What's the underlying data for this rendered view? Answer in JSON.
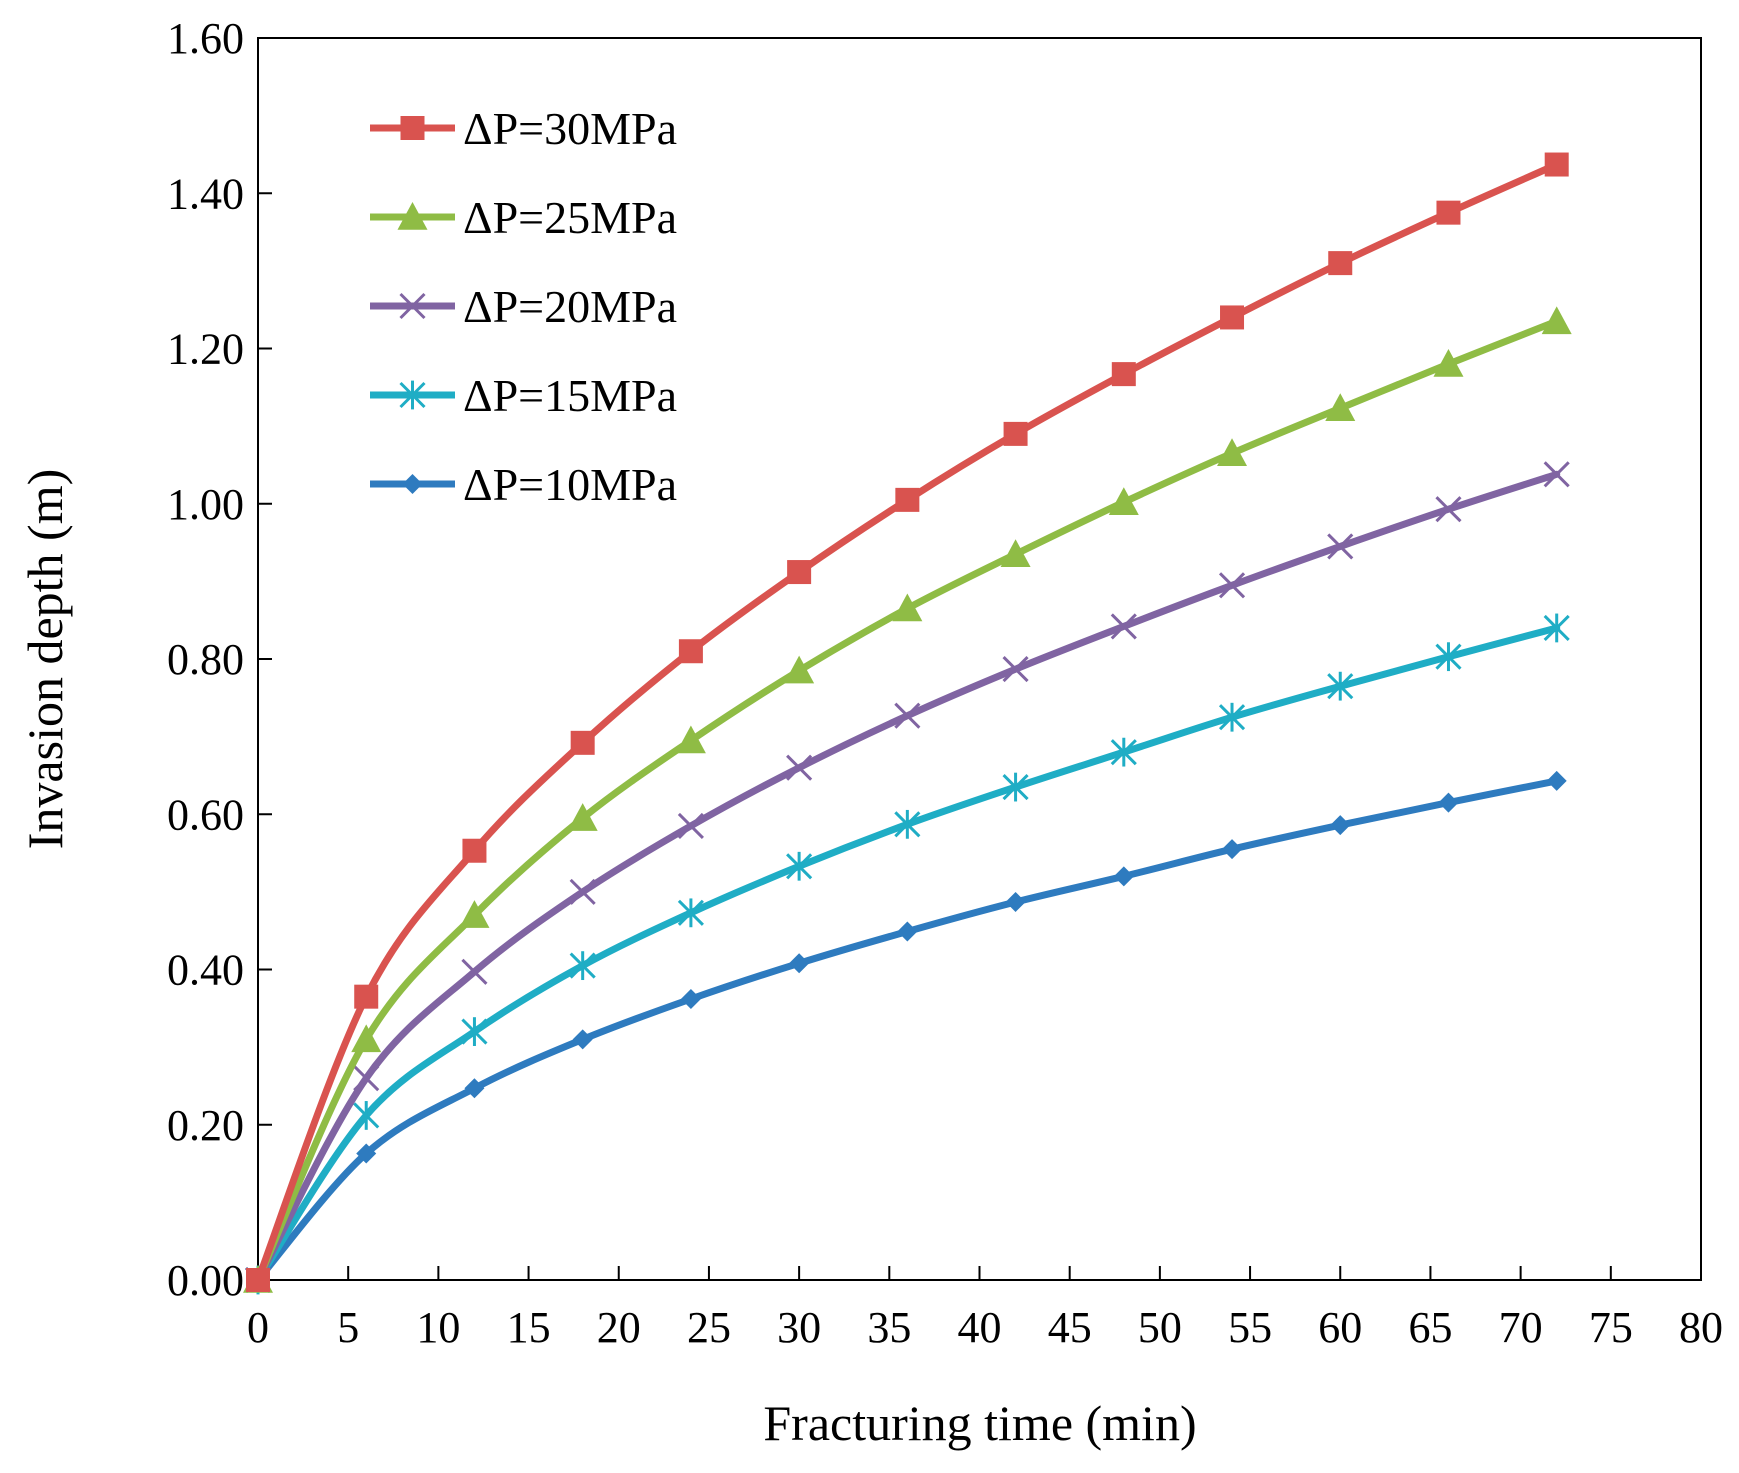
{
  "chart_data": {
    "type": "line",
    "title": "",
    "xlabel": "Fracturing time (min)",
    "ylabel": "Invasion depth (m)",
    "xlim": [
      0,
      80
    ],
    "ylim": [
      0,
      1.6
    ],
    "x_ticks": [
      0,
      5,
      10,
      15,
      20,
      25,
      30,
      35,
      40,
      45,
      50,
      55,
      60,
      65,
      70,
      75,
      80
    ],
    "x_tick_labels": [
      "0",
      "5",
      "10",
      "15",
      "20",
      "25",
      "30",
      "35",
      "40",
      "45",
      "50",
      "55",
      "60",
      "65",
      "70",
      "75",
      "80"
    ],
    "y_ticks": [
      0,
      0.2,
      0.4,
      0.6,
      0.8,
      1.0,
      1.2,
      1.4,
      1.6
    ],
    "y_tick_labels": [
      "0.00",
      "0.20",
      "0.40",
      "0.60",
      "0.80",
      "1.00",
      "1.20",
      "1.40",
      "1.60"
    ],
    "grid": false,
    "legend_position": "top-left",
    "x": [
      0,
      6,
      12,
      18,
      24,
      30,
      36,
      42,
      48,
      54,
      60,
      66,
      72
    ],
    "series": [
      {
        "name": "ΔP=30MPa",
        "color": "#d9534f",
        "marker": "square",
        "values": [
          0,
          0.365,
          0.553,
          0.692,
          0.81,
          0.912,
          1.005,
          1.09,
          1.167,
          1.24,
          1.31,
          1.375,
          1.437
        ]
      },
      {
        "name": "ΔP=25MPa",
        "color": "#8fbc45",
        "marker": "triangle",
        "values": [
          0,
          0.31,
          0.47,
          0.595,
          0.695,
          0.785,
          0.865,
          0.935,
          1.002,
          1.065,
          1.123,
          1.18,
          1.235
        ]
      },
      {
        "name": "ΔP=20MPa",
        "color": "#8064a2",
        "marker": "x",
        "values": [
          0,
          0.26,
          0.397,
          0.5,
          0.585,
          0.66,
          0.727,
          0.787,
          0.842,
          0.895,
          0.945,
          0.993,
          1.038
        ]
      },
      {
        "name": "ΔP=15MPa",
        "color": "#1fadc5",
        "marker": "asterisk",
        "values": [
          0,
          0.212,
          0.32,
          0.405,
          0.473,
          0.533,
          0.587,
          0.635,
          0.68,
          0.725,
          0.765,
          0.803,
          0.84
        ]
      },
      {
        "name": "ΔP=10MPa",
        "color": "#2e7bbf",
        "marker": "diamond",
        "values": [
          0,
          0.163,
          0.247,
          0.31,
          0.362,
          0.408,
          0.449,
          0.487,
          0.52,
          0.555,
          0.586,
          0.615,
          0.643
        ]
      }
    ]
  }
}
